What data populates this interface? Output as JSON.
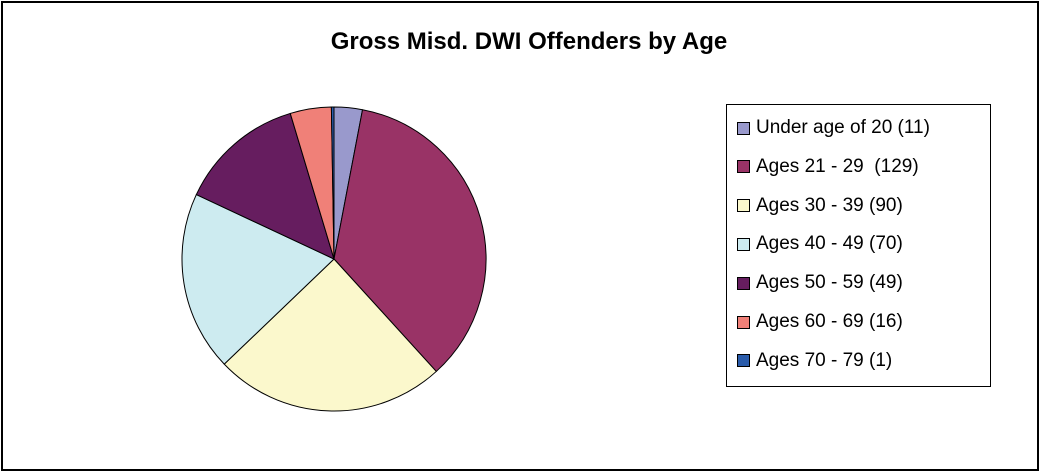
{
  "chart_data": {
    "type": "pie",
    "title": "Gross Misd. DWI Offenders by Age",
    "slices": [
      {
        "label": "Under age of 20 (11)",
        "value": 11,
        "color": "#9999cc"
      },
      {
        "label": "Ages 21 - 29  (129)",
        "value": 129,
        "color": "#993366"
      },
      {
        "label": "Ages 30 - 39 (90)",
        "value": 90,
        "color": "#fbf8cc"
      },
      {
        "label": "Ages 40 - 49 (70)",
        "value": 70,
        "color": "#cdebf0"
      },
      {
        "label": "Ages 50 - 59 (49)",
        "value": 49,
        "color": "#661d5f"
      },
      {
        "label": "Ages 60 - 69 (16)",
        "value": 16,
        "color": "#f08078"
      },
      {
        "label": "Ages 70 - 79 (1)",
        "value": 1,
        "color": "#2a5cab"
      }
    ],
    "start_angle_deg": 0,
    "direction": "clockwise",
    "legend_position": "right"
  }
}
